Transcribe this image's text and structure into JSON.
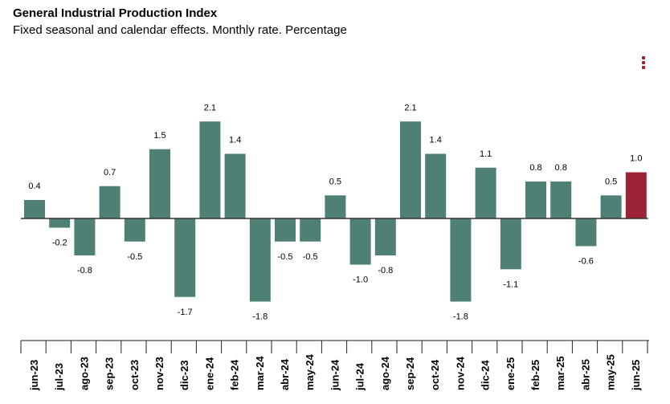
{
  "header": {
    "title": "General Industrial Production Index",
    "subtitle": "Fixed seasonal and calendar effects. Monthly rate. Percentage"
  },
  "chart_data": {
    "type": "bar",
    "title": "General Industrial Production Index",
    "subtitle": "Fixed seasonal and calendar effects. Monthly rate. Percentage",
    "xlabel": "",
    "ylabel": "",
    "grid": false,
    "categories": [
      "jun-23",
      "jul-23",
      "ago-23",
      "sep-23",
      "oct-23",
      "nov-23",
      "dic-23",
      "ene-24",
      "feb-24",
      "mar-24",
      "abr-24",
      "may-24",
      "jun-24",
      "jul-24",
      "ago-24",
      "sep-24",
      "oct-24",
      "nov-24",
      "dic-24",
      "ene-25",
      "feb-25",
      "mar-25",
      "abr-25",
      "may-25",
      "jun-25"
    ],
    "values": [
      0.4,
      -0.2,
      -0.8,
      0.7,
      -0.5,
      1.5,
      -1.7,
      2.1,
      1.4,
      -1.8,
      -0.5,
      -0.5,
      0.5,
      -1.0,
      -0.8,
      2.1,
      1.4,
      -1.8,
      1.1,
      -1.1,
      0.8,
      0.8,
      -0.6,
      0.5,
      1.0
    ],
    "labels": [
      "0.4",
      "-0.2",
      "-0.8",
      "0.7",
      "-0.5",
      "1.5",
      "-1.7",
      "2.1",
      "1.4",
      "-1.8",
      "-0.5",
      "-0.5",
      "0.5",
      "-1.0",
      "-0.8",
      "2.1",
      "1.4",
      "-1.8",
      "1.1",
      "-1.1",
      "0.8",
      "0.8",
      "-0.6",
      "0.5",
      "1.0"
    ],
    "ylim": [
      -1.9,
      2.2
    ],
    "colors": {
      "default": "#4e8076",
      "highlight": "#9b2335",
      "zero_line": "#333333",
      "axis": "#222222"
    },
    "highlight_index": 24
  }
}
